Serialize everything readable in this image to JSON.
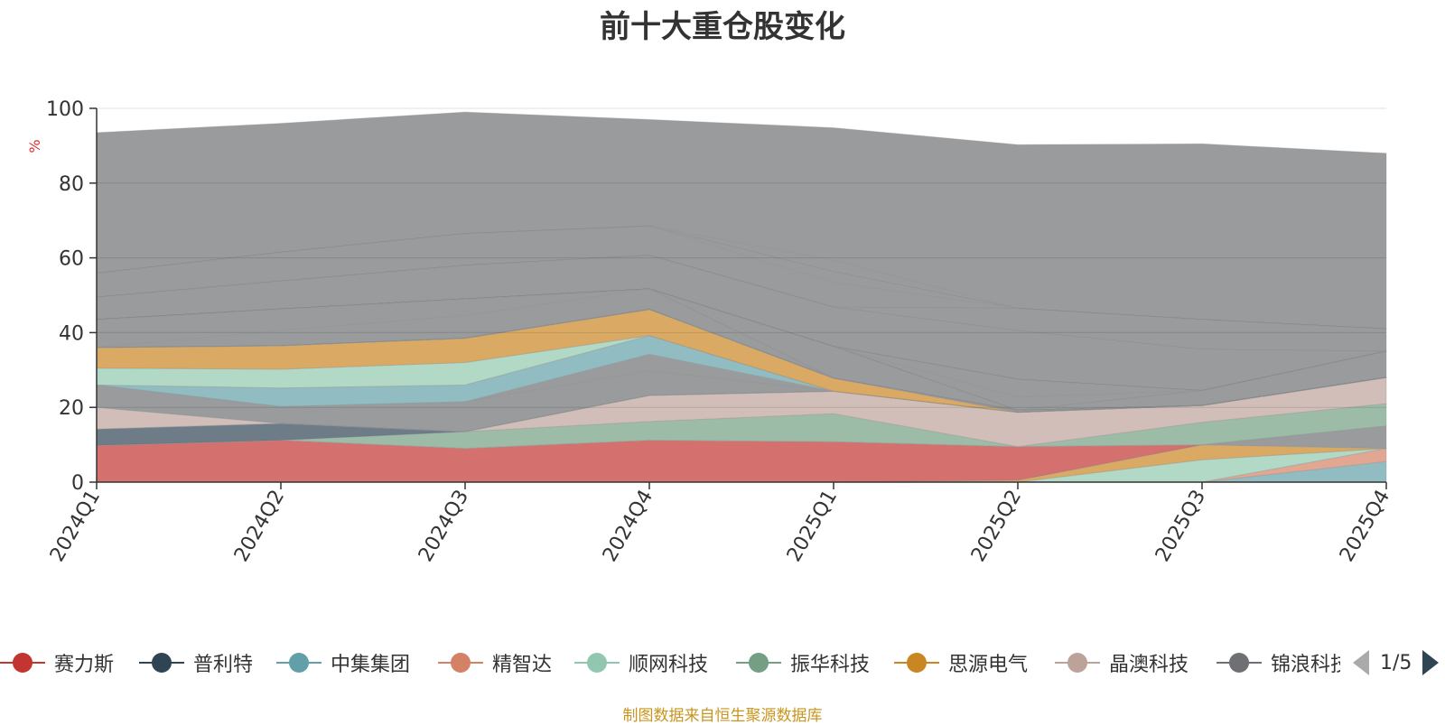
{
  "chart_data": {
    "type": "area",
    "stacked": true,
    "title": "前十大重仓股变化",
    "ylabel": "%",
    "ylim": [
      0,
      100
    ],
    "yticks": [
      0,
      20,
      40,
      60,
      80,
      100
    ],
    "categories": [
      "2024Q1",
      "2024Q2",
      "2024Q3",
      "2024Q4",
      "2025Q1",
      "2025Q2",
      "2025Q3",
      "2025Q4"
    ],
    "series": [
      {
        "name": "中集集团",
        "color": "#61a0a8",
        "values": [
          0,
          0,
          0,
          0,
          0,
          0,
          0,
          5.5
        ]
      },
      {
        "name": "精智达",
        "color": "#d48265",
        "values": [
          0,
          0,
          0,
          0,
          0,
          0,
          0,
          3.5
        ]
      },
      {
        "name": "顺网科技",
        "color": "#91c7ae",
        "values": [
          0,
          0,
          0,
          0,
          0,
          0,
          6,
          0
        ]
      },
      {
        "name": "思源电气",
        "color": "#ca8622",
        "values": [
          0,
          0,
          0,
          0,
          0,
          0.5,
          4,
          0
        ]
      },
      {
        "name": "锦浪科技",
        "color": "#6e7074",
        "values": [
          0,
          0,
          0,
          0,
          0,
          0,
          0,
          6
        ]
      },
      {
        "name": "赛力斯",
        "color": "#c23531",
        "values": [
          9.8,
          11.2,
          9,
          11.2,
          10.8,
          9,
          0,
          0
        ]
      },
      {
        "name": "振华科技",
        "color": "#749f83",
        "values": [
          0,
          0,
          4.5,
          5,
          7.5,
          0,
          6,
          6
        ]
      },
      {
        "name": "晶澳科技",
        "color": "#bda29a",
        "values": [
          0,
          0,
          0,
          7,
          6,
          9.2,
          4.5,
          7
        ]
      },
      {
        "name": "普利特",
        "color": "#2f4554",
        "values": [
          4.4,
          4.5,
          0,
          0,
          0,
          0,
          0,
          0
        ]
      },
      {
        "name": "晶澳科技",
        "color": "#bda29a",
        "values": [
          5.8,
          0,
          0,
          0,
          0,
          0,
          0,
          0
        ]
      },
      {
        "name": "锦浪科技",
        "color": "#6e7074",
        "values": [
          6,
          4.5,
          8,
          6.5,
          0,
          0,
          0,
          0
        ]
      },
      {
        "name": "锦浪科技",
        "color": "#6e7074",
        "values": [
          0,
          0,
          0,
          4.5,
          0,
          0,
          0,
          0
        ]
      },
      {
        "name": "中集集团",
        "color": "#61a0a8",
        "values": [
          0,
          5,
          4.5,
          5,
          0,
          0,
          0,
          0
        ]
      },
      {
        "name": "顺网科技",
        "color": "#91c7ae",
        "values": [
          4.5,
          5,
          6,
          0,
          0,
          0,
          0,
          0
        ]
      },
      {
        "name": "思源电气",
        "color": "#ca8622",
        "values": [
          5.5,
          6.3,
          6.5,
          7,
          3.5,
          0,
          0,
          0
        ]
      },
      {
        "name": "锦浪科技",
        "color": "#6e7074",
        "values": [
          0,
          0,
          0,
          0,
          0,
          0.5,
          0,
          0
        ]
      },
      {
        "name": "晶澳科技",
        "color": "#bda29a",
        "values": [
          0,
          0,
          0,
          0,
          0,
          0,
          0,
          0
        ]
      },
      {
        "name": "锦浪科技",
        "color": "#6e7074",
        "values": [
          0,
          0,
          0,
          0,
          0,
          0,
          0,
          0
        ]
      },
      {
        "name": "顺网科技",
        "color": "#91c7ae",
        "values": [
          0,
          0,
          0,
          0,
          0,
          0,
          0,
          0
        ]
      },
      {
        "name": "锦浪科技",
        "color": "#6e7074",
        "values": [
          0,
          0,
          0,
          0,
          0,
          0,
          0,
          0
        ]
      },
      {
        "name": "锦浪科技",
        "color": "#6e7074",
        "values": [
          0,
          4,
          6,
          5.5,
          0,
          0,
          0,
          0
        ]
      },
      {
        "name": "锦浪科技",
        "color": "#6e7074",
        "values": [
          7.5,
          5.8,
          4.5,
          0,
          0,
          0,
          0,
          0
        ]
      },
      {
        "name": "锦浪科技",
        "color": "#6e7074",
        "values": [
          0,
          0,
          0,
          0,
          8.5,
          0,
          0,
          0
        ]
      },
      {
        "name": "锦浪科技",
        "color": "#6e7074",
        "values": [
          0,
          0,
          0,
          0,
          0,
          0,
          0,
          0
        ]
      },
      {
        "name": "锦浪科技",
        "color": "#6e7074",
        "values": [
          0,
          0,
          0,
          0,
          0,
          0,
          4,
          7
        ]
      },
      {
        "name": "锦浪科技",
        "color": "#6e7074",
        "values": [
          0,
          0,
          0,
          0,
          0,
          0,
          0,
          0
        ]
      },
      {
        "name": "锦浪科技",
        "color": "#6e7074",
        "values": [
          0,
          0,
          0,
          0,
          0,
          3.5,
          0,
          0
        ]
      },
      {
        "name": "锦浪科技",
        "color": "#6e7074",
        "values": [
          0,
          0,
          0,
          0,
          0,
          4.8,
          0,
          0
        ]
      },
      {
        "name": "锦浪科技",
        "color": "#6e7074",
        "values": [
          0,
          0,
          0,
          0,
          0,
          0,
          0,
          0
        ]
      },
      {
        "name": "锦浪科技",
        "color": "#6e7074",
        "values": [
          0,
          0,
          0,
          0,
          0,
          0,
          0,
          0
        ]
      },
      {
        "name": "锦浪科技",
        "color": "#6e7074",
        "values": [
          0,
          0,
          0,
          0,
          0,
          0,
          0,
          0
        ]
      },
      {
        "name": "锦浪科技",
        "color": "#6e7074",
        "values": [
          0,
          0,
          0,
          0,
          0,
          0,
          0,
          0
        ]
      },
      {
        "name": "锦浪科技",
        "color": "#6e7074",
        "values": [
          6,
          7.5,
          9,
          9,
          10.5,
          13,
          11,
          0
        ]
      },
      {
        "name": "锦浪科技",
        "color": "#6e7074",
        "values": [
          0,
          0,
          0,
          0,
          0,
          0,
          0,
          0
        ]
      },
      {
        "name": "锦浪科技",
        "color": "#6e7074",
        "values": [
          0,
          0,
          0,
          0,
          0,
          6,
          8,
          6
        ]
      },
      {
        "name": "锦浪科技",
        "color": "#6e7074",
        "values": [
          0,
          0,
          0,
          0,
          0,
          0,
          0,
          0
        ]
      },
      {
        "name": "锦浪科技",
        "color": "#6e7074",
        "values": [
          6.4,
          7.7,
          8.5,
          7.8,
          6.5,
          0,
          0,
          0
        ]
      },
      {
        "name": "锦浪科技",
        "color": "#6e7074",
        "values": [
          0,
          0,
          0,
          0,
          3,
          0,
          0,
          0
        ]
      },
      {
        "name": "锦浪科技",
        "color": "#6e7074",
        "values": [
          0,
          0,
          0,
          0,
          0,
          0,
          0,
          0
        ]
      },
      {
        "name": "锦浪科技",
        "color": "#6e7074",
        "values": [
          0,
          0,
          0,
          0,
          3,
          0,
          0,
          0
        ]
      },
      {
        "name": "锦浪科技",
        "color": "#6e7074",
        "values": [
          37.6,
          34.5,
          32.5,
          28.5,
          35.5,
          43.8,
          47,
          47
        ]
      }
    ]
  },
  "legend": {
    "items": [
      {
        "name": "赛力斯",
        "color": "#c23531"
      },
      {
        "name": "普利特",
        "color": "#2f4554"
      },
      {
        "name": "中集集团",
        "color": "#61a0a8"
      },
      {
        "name": "精智达",
        "color": "#d48265"
      },
      {
        "name": "顺网科技",
        "color": "#91c7ae"
      },
      {
        "name": "振华科技",
        "color": "#749f83"
      },
      {
        "name": "思源电气",
        "color": "#ca8622"
      },
      {
        "name": "晶澳科技",
        "color": "#bda29a"
      },
      {
        "name": "锦浪科技",
        "color": "#6e7074"
      }
    ],
    "page": "1/5"
  },
  "source_note": "制图数据来自恒生聚源数据库",
  "colors": {
    "title": "#333333",
    "axis": "#333333",
    "ylabel": "#e03030",
    "source_note": "#c8961e",
    "pager_inactive": "#aaaaaa",
    "pager_active": "#2f4554"
  }
}
